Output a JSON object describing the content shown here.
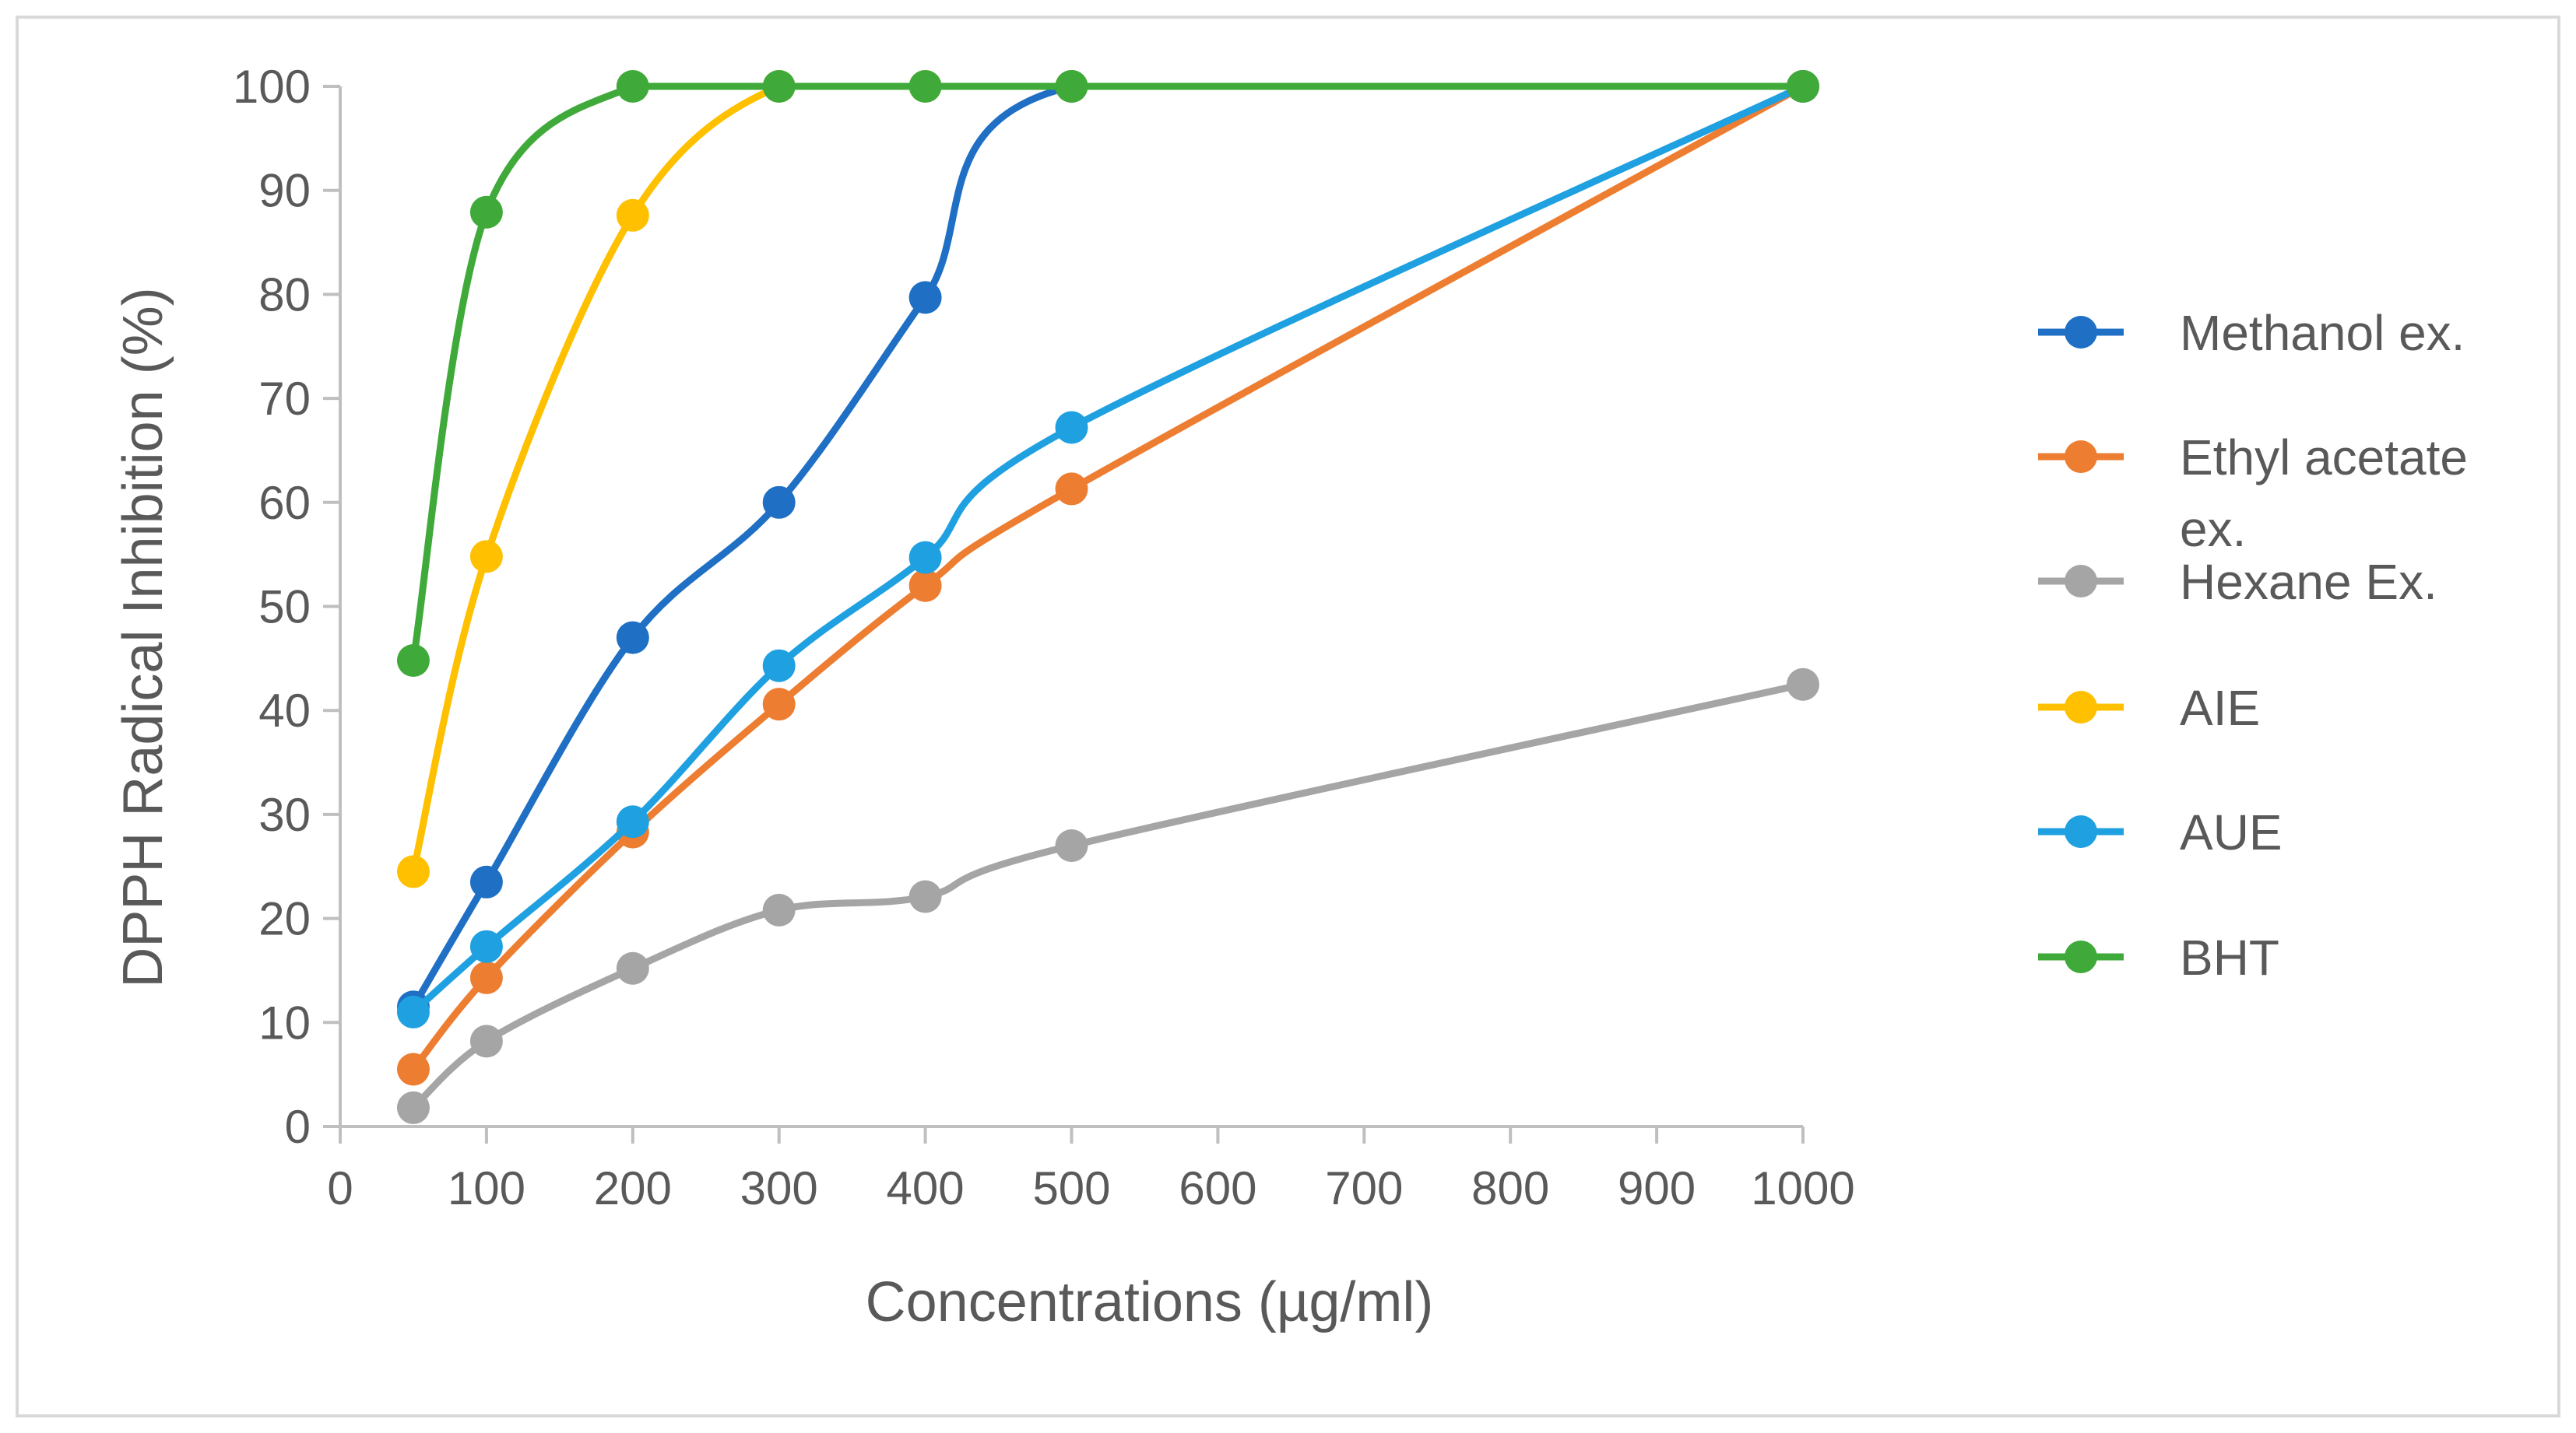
{
  "chart_data": {
    "type": "line",
    "title": "",
    "xlabel": "Concentrations (µg/ml)",
    "ylabel": "DPPH Radical Inhibition (%)",
    "xlim": [
      0,
      1000
    ],
    "ylim": [
      0,
      100
    ],
    "x_ticks": [
      "0",
      "100",
      "200",
      "300",
      "400",
      "500",
      "600",
      "700",
      "800",
      "900",
      "1000"
    ],
    "y_ticks": [
      "0",
      "10",
      "20",
      "30",
      "40",
      "50",
      "60",
      "70",
      "80",
      "90",
      "100"
    ],
    "grid": false,
    "smooth": true,
    "legend_position": "right",
    "series": [
      {
        "name": "Methanol ex.",
        "color": "#1f6fc5",
        "x": [
          50,
          100,
          200,
          300,
          400,
          500,
          1000
        ],
        "values": [
          11.5,
          23.5,
          47,
          60,
          79.7,
          100,
          100
        ]
      },
      {
        "name": "Ethyl acetate ex.",
        "color": "#ed7d31",
        "x": [
          50,
          100,
          200,
          300,
          400,
          500,
          1000
        ],
        "values": [
          5.5,
          14.3,
          28.3,
          40.6,
          52,
          61.3,
          100
        ]
      },
      {
        "name": "Hexane Ex.",
        "color": "#a5a5a5",
        "x": [
          50,
          100,
          200,
          300,
          400,
          500,
          1000
        ],
        "values": [
          1.8,
          8.2,
          15.2,
          20.8,
          22.1,
          27,
          42.5
        ]
      },
      {
        "name": "AIE",
        "color": "#ffc000",
        "x": [
          50,
          100,
          200,
          300,
          400,
          500,
          1000
        ],
        "values": [
          24.5,
          54.8,
          87.6,
          100,
          100,
          100,
          100
        ]
      },
      {
        "name": "AUE",
        "color": "#1fa0e0",
        "x": [
          50,
          100,
          200,
          300,
          400,
          500,
          1000
        ],
        "values": [
          11,
          17.3,
          29.3,
          44.3,
          54.7,
          67.2,
          100
        ]
      },
      {
        "name": "BHT",
        "color": "#3faa3a",
        "x": [
          50,
          100,
          200,
          300,
          400,
          500,
          1000
        ],
        "values": [
          44.8,
          87.9,
          100,
          100,
          100,
          100,
          100
        ]
      }
    ]
  }
}
